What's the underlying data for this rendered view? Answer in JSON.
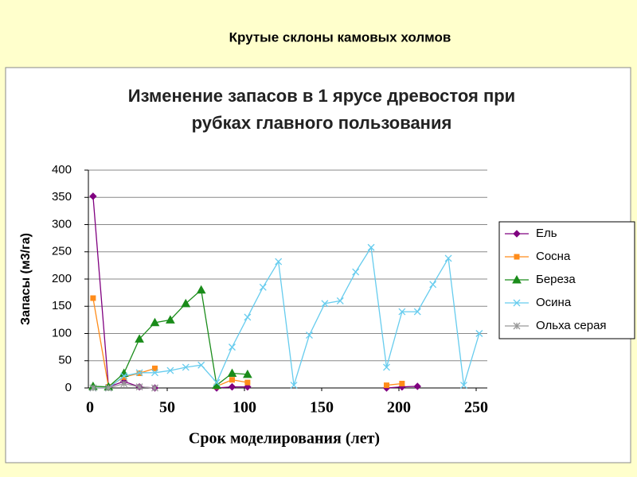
{
  "slide_title": "Крутые склоны камовых холмов",
  "chart_data": {
    "type": "line",
    "title": [
      "Изменение запасов в 1 ярусе древостоя при",
      "рубках главного пользования"
    ],
    "x_label": "Срок моделирования (лет)",
    "y_label": "Запасы (м3/га)",
    "xlim": [
      0,
      250
    ],
    "xticks": [
      0,
      50,
      100,
      150,
      200,
      250
    ],
    "ylim": [
      0,
      400
    ],
    "yticks": [
      0,
      50,
      100,
      150,
      200,
      250,
      300,
      350,
      400
    ],
    "grid": true,
    "legend": "right",
    "series": [
      {
        "name": "Ель",
        "color": "#800080",
        "marker": "diamond",
        "x": [
          2,
          12,
          22,
          32,
          42,
          52,
          82,
          92,
          102,
          112,
          192,
          202,
          212
        ],
        "values": [
          352,
          2,
          12,
          2,
          0,
          null,
          0,
          2,
          2,
          null,
          0,
          2,
          3
        ]
      },
      {
        "name": "Сосна",
        "color": "#ff8c1a",
        "marker": "square",
        "x": [
          2,
          12,
          22,
          32,
          42,
          52,
          82,
          92,
          102,
          112,
          192,
          202
        ],
        "values": [
          165,
          2,
          20,
          27,
          36,
          null,
          3,
          15,
          10,
          null,
          5,
          8
        ]
      },
      {
        "name": "Береза",
        "color": "#1a8c1a",
        "marker": "triangle",
        "x": [
          2,
          12,
          22,
          32,
          42,
          52,
          62,
          72,
          82,
          92,
          102
        ],
        "values": [
          3,
          2,
          27,
          90,
          120,
          125,
          155,
          180,
          5,
          27,
          25
        ]
      },
      {
        "name": "Осина",
        "color": "#66ccee",
        "marker": "x",
        "x": [
          2,
          12,
          22,
          32,
          42,
          52,
          62,
          72,
          82,
          92,
          102,
          112,
          122,
          132,
          142,
          152,
          162,
          172,
          182,
          192,
          202,
          212,
          222,
          232,
          242,
          252
        ],
        "values": [
          0,
          0,
          22,
          28,
          28,
          32,
          38,
          42,
          10,
          75,
          130,
          185,
          232,
          5,
          97,
          155,
          160,
          213,
          258,
          38,
          140,
          140,
          190,
          238,
          5,
          100
        ]
      },
      {
        "name": "Ольха серая",
        "color": "#999999",
        "marker": "star",
        "x": [
          2,
          12,
          22,
          32,
          42
        ],
        "values": [
          0,
          0,
          8,
          2,
          0
        ]
      }
    ]
  }
}
